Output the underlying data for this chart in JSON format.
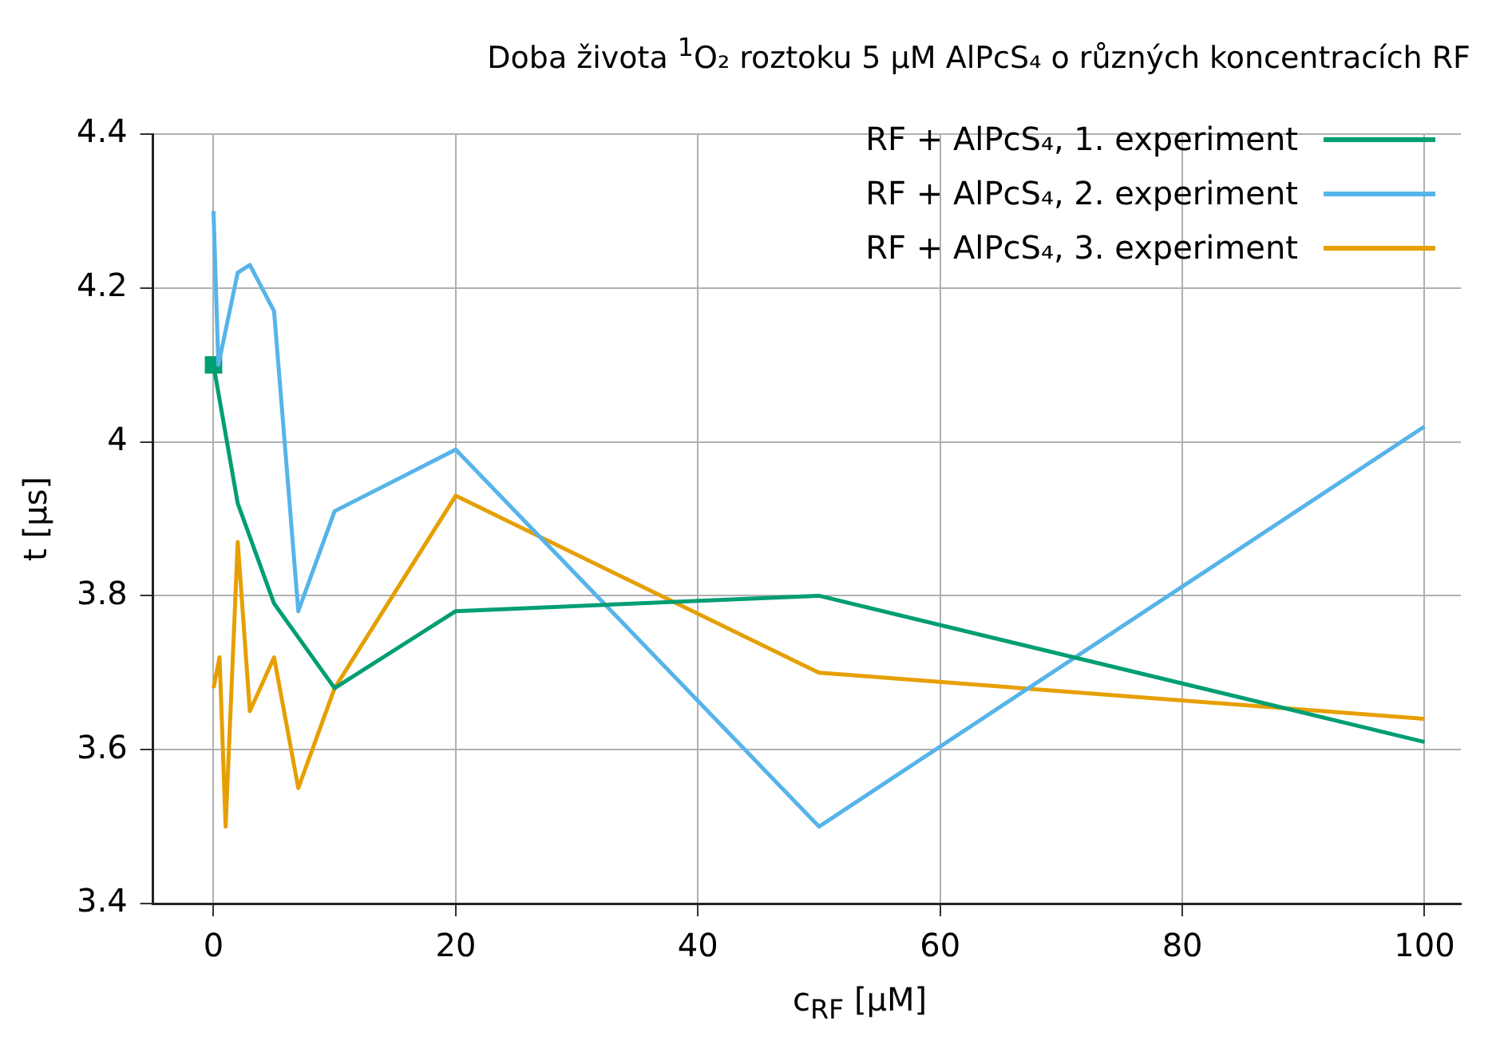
{
  "chart_data": {
    "type": "line",
    "title": "Doba života $^{1}$O₂ roztoku 5 µM AlPcS₄ o různých koncentracích RF",
    "xlabel": "c$_{RF}$ [µM]",
    "ylabel": "t [µs]",
    "xlim": [
      -5,
      103
    ],
    "xticks": [
      0,
      20,
      40,
      60,
      80,
      100
    ],
    "ylim": [
      3.4,
      4.4
    ],
    "yticks": [
      3.4,
      3.6,
      3.8,
      4,
      4.2,
      4.4
    ],
    "grid": true,
    "legend": "top right",
    "marker": "none",
    "line_style": "solid",
    "series": [
      {
        "name": "RF + AlPcS₄, 1. experiment",
        "color": "#009e73",
        "x": [
          0,
          2,
          5,
          10,
          20,
          50,
          100
        ],
        "values": [
          4.1,
          3.92,
          3.79,
          3.68,
          3.78,
          3.8,
          3.61
        ]
      },
      {
        "name": "RF + AlPcS₄, 2. experiment",
        "color": "#56b4e9",
        "x": [
          0,
          0.4,
          2,
          3,
          5,
          7,
          10,
          20,
          50,
          100
        ],
        "values": [
          4.3,
          4.1,
          4.22,
          4.23,
          4.17,
          3.78,
          3.91,
          3.99,
          3.5,
          4.02
        ]
      },
      {
        "name": "RF + AlPcS₄, 3. experiment",
        "color": "#e69f00",
        "x": [
          0,
          0.5,
          1,
          2,
          3,
          5,
          7,
          10,
          20,
          50,
          100
        ],
        "values": [
          3.68,
          3.72,
          3.5,
          3.87,
          3.65,
          3.72,
          3.55,
          3.68,
          3.93,
          3.7,
          3.64
        ]
      },
      {
        "type": "scatter",
        "color": "#009e73",
        "marker": "square",
        "x": [
          0
        ],
        "values": [
          4.1
        ]
      }
    ]
  }
}
